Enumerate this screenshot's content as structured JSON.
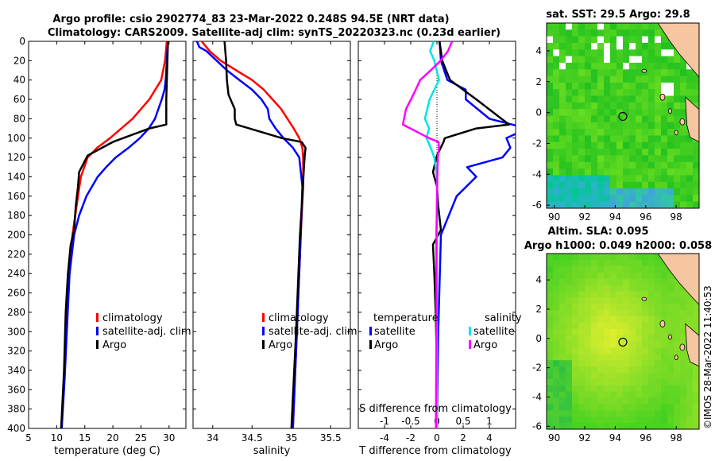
{
  "figure": {
    "title_line1": "Argo profile: csio 2902774_83 23-Mar-2022 0.248S 94.5E (NRT data)",
    "title_line2": "Climatology: CARS2009. Satellite-adj clim: synTS_20220323.nc (0.23d earlier)",
    "credit": "©IMOS 28-Mar-2022 11:40:53"
  },
  "colors": {
    "climatology": "#ff0000",
    "satellite": "#0000ff",
    "argo": "#000000",
    "sal_satellite": "#00e5e5",
    "sal_argo": "#ff00ff",
    "land": "#f5c6a0"
  },
  "chart_data": [
    {
      "id": "temperature",
      "type": "line",
      "xlabel": "temperature (deg C)",
      "ylabel": "",
      "xlim": [
        5,
        33
      ],
      "ylim": [
        400,
        0
      ],
      "xticks": [
        5,
        10,
        15,
        20,
        25,
        30
      ],
      "yticks": [
        0,
        20,
        40,
        60,
        80,
        100,
        120,
        140,
        160,
        180,
        200,
        220,
        240,
        260,
        280,
        300,
        320,
        340,
        360,
        380,
        400
      ],
      "legend": [
        "climatology",
        "satellite-adj. clim",
        "Argo"
      ],
      "series": [
        {
          "name": "climatology",
          "color": "#ff0000",
          "depth": [
            0,
            20,
            40,
            60,
            80,
            100,
            110,
            120,
            140,
            160,
            180,
            200,
            240,
            300,
            350,
            400
          ],
          "values": [
            29.6,
            29.3,
            28.6,
            26.5,
            23.5,
            19.5,
            17.2,
            15.5,
            14.3,
            13.8,
            13.3,
            12.8,
            12.2,
            11.7,
            11.3,
            10.8
          ]
        },
        {
          "name": "satellite-adj. clim",
          "color": "#0000ff",
          "depth": [
            0,
            20,
            40,
            50,
            60,
            80,
            90,
            100,
            110,
            120,
            130,
            140,
            160,
            180,
            200,
            240,
            300,
            350,
            400
          ],
          "values": [
            29.8,
            29.6,
            29.4,
            29.2,
            28.7,
            27.5,
            26.4,
            24.8,
            22.8,
            20.5,
            18.8,
            17.3,
            15.3,
            14.0,
            13.1,
            12.3,
            11.8,
            11.4,
            10.9
          ]
        },
        {
          "name": "Argo",
          "color": "#000000",
          "depth": [
            0,
            20,
            40,
            60,
            86,
            90,
            104,
            118,
            135,
            150,
            170,
            195,
            210,
            240,
            280,
            340,
            400
          ],
          "values": [
            29.8,
            29.7,
            29.6,
            29.5,
            29.5,
            26.5,
            20.0,
            15.5,
            14.0,
            13.8,
            13.4,
            13.1,
            12.5,
            12.0,
            11.6,
            11.3,
            10.8
          ]
        }
      ]
    },
    {
      "id": "salinity",
      "type": "line",
      "xlabel": "salinity",
      "ylabel": "",
      "xlim": [
        33.75,
        35.75
      ],
      "ylim": [
        400,
        0
      ],
      "xticks": [
        34,
        34.5,
        35,
        35.5
      ],
      "legend": [
        "climatology",
        "satellite-adj. clim",
        "Argo"
      ],
      "series": [
        {
          "name": "climatology",
          "color": "#ff0000",
          "depth": [
            0,
            10,
            20,
            30,
            40,
            50,
            60,
            70,
            80,
            90,
            100,
            110,
            120,
            150,
            200,
            300,
            400
          ],
          "values": [
            33.86,
            33.96,
            34.1,
            34.3,
            34.5,
            34.65,
            34.76,
            34.87,
            34.95,
            35.03,
            35.1,
            35.14,
            35.15,
            35.15,
            35.12,
            35.07,
            35.02
          ]
        },
        {
          "name": "satellite-adj. clim",
          "color": "#0000ff",
          "depth": [
            0,
            6,
            10,
            20,
            30,
            40,
            50,
            60,
            70,
            80,
            90,
            100,
            110,
            120,
            150,
            200,
            300,
            400
          ],
          "values": [
            33.8,
            33.83,
            33.92,
            34.05,
            34.18,
            34.34,
            34.5,
            34.62,
            34.7,
            34.72,
            34.8,
            34.9,
            35.02,
            35.1,
            35.14,
            35.12,
            35.07,
            35.02
          ]
        },
        {
          "name": "Argo",
          "color": "#000000",
          "depth": [
            0,
            20,
            40,
            55,
            70,
            80,
            86,
            100,
            104,
            110,
            118,
            130,
            160,
            200,
            300,
            400
          ],
          "values": [
            34.15,
            34.17,
            34.18,
            34.2,
            34.28,
            34.28,
            34.3,
            34.88,
            35.13,
            35.18,
            35.17,
            35.16,
            35.14,
            35.11,
            35.06,
            35.0
          ]
        }
      ]
    },
    {
      "id": "difference",
      "type": "line",
      "xlabel": "T difference from climatology",
      "xlabel_top": "S difference from climatology",
      "xlim": [
        -6,
        6
      ],
      "xlim_salinity": [
        -1.5,
        1.5
      ],
      "ylim": [
        400,
        0
      ],
      "xticks": [
        -4,
        -2,
        0,
        2,
        4
      ],
      "xticks_salinity": [
        -1,
        -0.5,
        0,
        0.5,
        1
      ],
      "legend_temperature_title": "temperature",
      "legend_salinity_title": "salinity",
      "legend": [
        "satellite",
        "Argo",
        "satellite",
        "Argo"
      ],
      "series": [
        {
          "name": "T satellite",
          "color": "#0000ff",
          "axis": "T",
          "depth": [
            0,
            20,
            40,
            50,
            60,
            80,
            90,
            100,
            110,
            120,
            130,
            140,
            160,
            200,
            300,
            400
          ],
          "values": [
            0.2,
            0.3,
            0.8,
            2.2,
            2.2,
            4.0,
            6.9,
            5.3,
            5.6,
            5.0,
            2.3,
            3.0,
            1.5,
            0.3,
            0.1,
            0.0
          ]
        },
        {
          "name": "T Argo",
          "color": "#000000",
          "axis": "T",
          "depth": [
            0,
            20,
            40,
            60,
            86,
            90,
            100,
            104,
            118,
            135,
            150,
            170,
            195,
            210,
            240,
            280,
            340,
            400
          ],
          "values": [
            0.2,
            0.4,
            1.0,
            3.0,
            5.5,
            3.0,
            0.6,
            0.5,
            0.0,
            -0.3,
            -0.0,
            0.1,
            0.3,
            -0.3,
            -0.2,
            -0.1,
            0.0,
            0.0
          ]
        },
        {
          "name": "S satellite",
          "color": "#00e5e5",
          "axis": "S",
          "depth": [
            0,
            10,
            20,
            40,
            60,
            80,
            90,
            100,
            110,
            120,
            140,
            200,
            300,
            400
          ],
          "values": [
            -0.06,
            -0.13,
            -0.05,
            0.04,
            -0.14,
            -0.23,
            -0.15,
            -0.2,
            -0.12,
            -0.05,
            0.0,
            0.0,
            0.0,
            0.0
          ]
        },
        {
          "name": "S Argo",
          "color": "#ff00ff",
          "axis": "S",
          "depth": [
            0,
            10,
            20,
            30,
            40,
            55,
            70,
            86,
            100,
            104,
            110,
            118,
            130,
            200,
            300,
            400
          ],
          "values": [
            0.29,
            0.21,
            0.07,
            -0.12,
            -0.32,
            -0.45,
            -0.59,
            -0.65,
            -0.15,
            0.03,
            0.04,
            0.02,
            0.01,
            -0.01,
            -0.01,
            -0.02
          ]
        }
      ]
    },
    {
      "id": "sat_sst_map",
      "type": "heatmap",
      "title": "sat. SST: 29.5 Argo: 29.8",
      "xlim": [
        89.5,
        99.5
      ],
      "ylim": [
        -6.2,
        5.8
      ],
      "xticks": [
        90,
        92,
        94,
        96,
        98
      ],
      "yticks": [
        -6,
        -4,
        -2,
        0,
        2,
        4
      ],
      "marker": {
        "lon": 94.5,
        "lat": -0.25
      }
    },
    {
      "id": "altim_map",
      "type": "heatmap",
      "title_line1": "Altim. SLA: 0.095",
      "title_line2": "Argo h1000: 0.049 h2000: 0.058",
      "xlim": [
        89.5,
        99.5
      ],
      "ylim": [
        -6.2,
        5.8
      ],
      "xticks": [
        90,
        92,
        94,
        96,
        98
      ],
      "yticks": [
        -6,
        -4,
        -2,
        0,
        2,
        4
      ],
      "marker": {
        "lon": 94.5,
        "lat": -0.25
      }
    }
  ]
}
